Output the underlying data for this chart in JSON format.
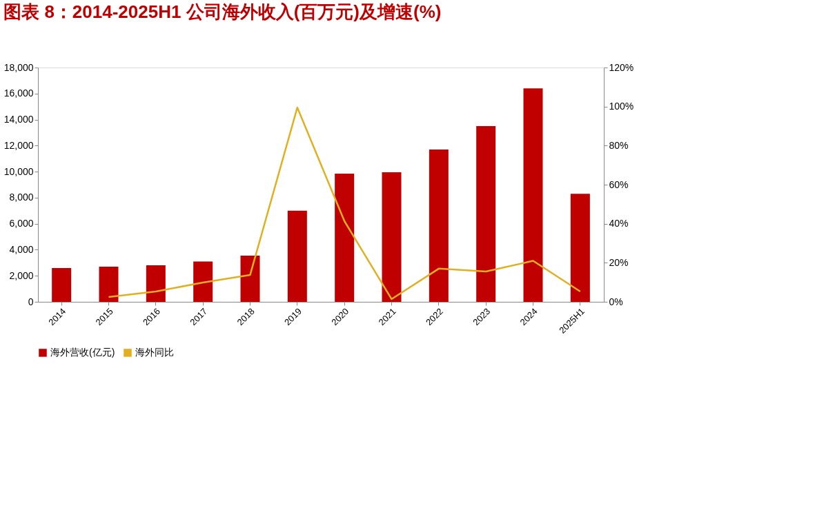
{
  "chart_data": {
    "type": "bar",
    "title": "图表 8：2014-2025H1 公司海外收入(百万元)及增速(%)",
    "categories": [
      "2014",
      "2015",
      "2016",
      "2017",
      "2018",
      "2019",
      "2020",
      "2021",
      "2022",
      "2023",
      "2024",
      "2025H1"
    ],
    "series": [
      {
        "name": "海外营收(亿元)",
        "color": "#c00000",
        "values": [
          2600,
          2700,
          2800,
          3100,
          3550,
          7000,
          9850,
          9950,
          11700,
          13500,
          16400,
          8300
        ]
      },
      {
        "name": "海外同比",
        "type": "line",
        "axis": "y2",
        "color": "#e0b020",
        "values": [
          null,
          2.5,
          5.3,
          9.9,
          13.8,
          99.5,
          41.3,
          1.4,
          17,
          15.5,
          21,
          5.3
        ]
      }
    ],
    "ylim": [
      0,
      18000
    ],
    "yticks": [
      0,
      {
        "value": 2000,
        "label": "2,000"
      },
      {
        "value": 4000,
        "label": "4,000"
      },
      {
        "value": 6000,
        "label": "6,000"
      },
      {
        "value": 8000,
        "label": "8,000"
      },
      {
        "value": 10000,
        "label": "10,000"
      },
      {
        "value": 12000,
        "label": "12,000"
      },
      {
        "value": 14000,
        "label": "14,000"
      },
      {
        "value": 16000,
        "label": "16,000"
      },
      {
        "value": 18000,
        "label": "18,000"
      }
    ],
    "y2lim": [
      0,
      120
    ],
    "y2ticks": [
      {
        "value": 0,
        "label": "0%"
      },
      {
        "value": 20,
        "label": "20%"
      },
      {
        "value": 40,
        "label": "40%"
      },
      {
        "value": 60,
        "label": "60%"
      },
      {
        "value": 80,
        "label": "80%"
      },
      {
        "value": 100,
        "label": "100%"
      },
      {
        "value": 120,
        "label": "120%"
      }
    ],
    "grid": false,
    "legend": "bottom",
    "marker": "none",
    "line_style": "solid"
  }
}
